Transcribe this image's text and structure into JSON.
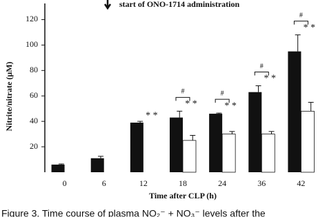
{
  "chart_data": {
    "type": "bar",
    "top_note": "start of ONO-1714 administration",
    "ylabel": "Nitrite/nitrate (μM)",
    "xlabel": "Time after CLP (h)",
    "caption": "Figure 3. Time course of plasma NO₂⁻ + NO₃⁻ levels after the",
    "categories": [
      "0",
      "6",
      "12",
      "18",
      "24",
      "36",
      "42"
    ],
    "series": [
      {
        "color": "#111111",
        "values": [
          6,
          11,
          39,
          43,
          46,
          63,
          95
        ],
        "errors": [
          0.5,
          1.5,
          1,
          5,
          0.5,
          5,
          13
        ]
      },
      {
        "color": "#ffffff",
        "values": [
          null,
          null,
          null,
          25,
          30,
          30,
          48
        ],
        "errors": [
          null,
          null,
          null,
          4,
          2,
          2,
          7
        ]
      }
    ],
    "star_labels": [
      "* *",
      "* *",
      "* *",
      "* *",
      "* *"
    ],
    "hash_labels": [
      "#",
      "#",
      "#",
      "#"
    ],
    "ylim": [
      0,
      130
    ],
    "yticks": [
      20,
      40,
      60,
      80,
      100,
      120
    ]
  }
}
